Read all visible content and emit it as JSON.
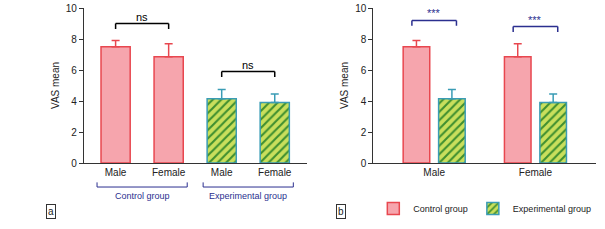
{
  "chart_data": [
    {
      "type": "bar",
      "label": "a",
      "y_label": "VAS mean",
      "categories": [
        "Male",
        "Female",
        "Male",
        "Female"
      ],
      "series": [
        {
          "name": "Control group",
          "color": "#f6a5ad",
          "values": [
            7.5,
            6.85,
            null,
            null
          ],
          "errors": [
            0.4,
            0.85,
            null,
            null
          ]
        },
        {
          "name": "Experimental group",
          "color": "#c9df5c",
          "values": [
            null,
            null,
            4.15,
            3.9
          ],
          "errors": [
            null,
            null,
            0.6,
            0.55
          ]
        }
      ],
      "ylim": [
        0,
        10
      ],
      "yticks": [
        0,
        2,
        4,
        6,
        8,
        10
      ],
      "grid": false,
      "annotations": [
        {
          "text": "ns",
          "span": [
            0,
            1
          ],
          "y": 9
        },
        {
          "text": "ns",
          "span": [
            2,
            3
          ],
          "y": 5.9
        }
      ]
    },
    {
      "type": "bar",
      "label": "b",
      "y_label": "VAS mean",
      "categories": [
        "Male",
        "Female"
      ],
      "series": [
        {
          "name": "Control group",
          "color": "#f6a5ad",
          "values": [
            7.5,
            6.85
          ],
          "errors": [
            0.4,
            0.85
          ]
        },
        {
          "name": "Experimental group",
          "color": "#c9df5c",
          "values": [
            4.15,
            3.9
          ],
          "errors": [
            0.6,
            0.55
          ]
        }
      ],
      "ylim": [
        0,
        10
      ],
      "yticks": [
        0,
        2,
        4,
        6,
        8,
        10
      ],
      "grid": false,
      "legend": "bottom",
      "annotations": [
        {
          "text": "***",
          "span": [
            0,
            0
          ],
          "y": 9.2
        },
        {
          "text": "***",
          "span": [
            1,
            1
          ],
          "y": 8.8
        }
      ]
    }
  ]
}
